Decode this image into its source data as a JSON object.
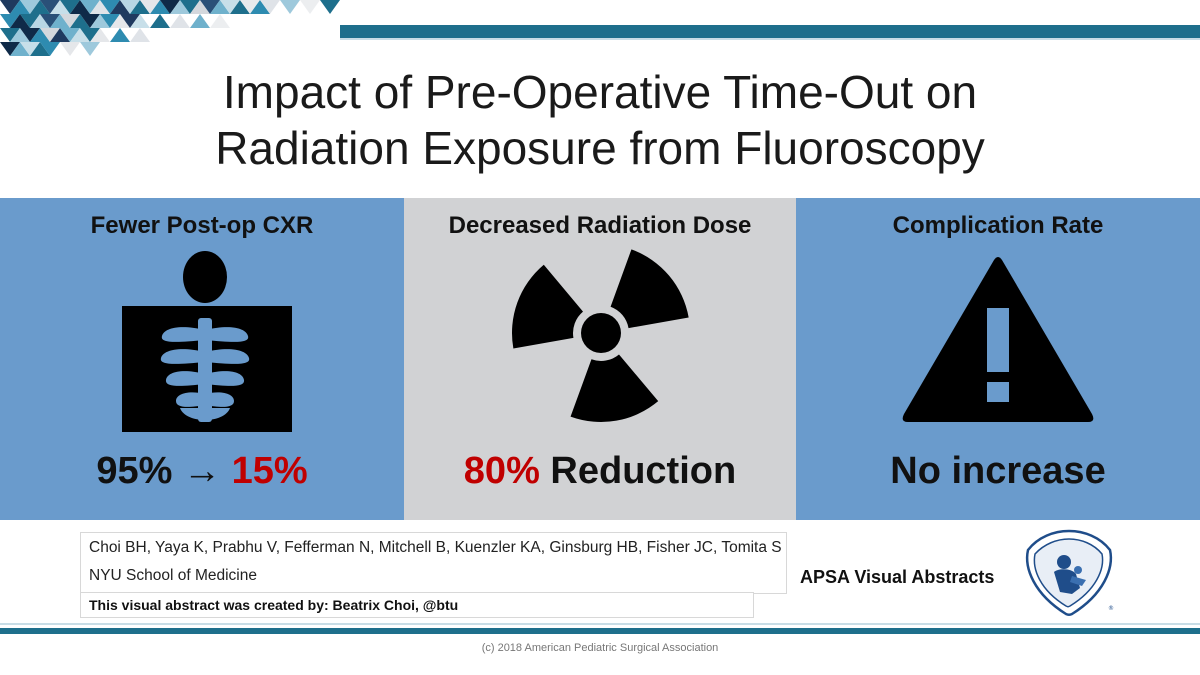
{
  "title": {
    "line1": "Impact of Pre-Operative Time-Out on",
    "line2": "Radiation Exposure from Fluoroscopy"
  },
  "panels": [
    {
      "heading": "Fewer Post-op CXR",
      "icon": "chest-xray-icon",
      "stat_before": "95%",
      "stat_arrow": "→",
      "stat_after": "15%"
    },
    {
      "heading": "Decreased Radiation Dose",
      "icon": "radiation-icon",
      "stat_highlight": "80%",
      "stat_text": "Reduction"
    },
    {
      "heading": "Complication Rate",
      "icon": "warning-icon",
      "stat_text": "No increase"
    }
  ],
  "authors": "Choi BH, Yaya K, Prabhu V, Fefferman N, Mitchell B, Kuenzler KA, Ginsburg HB, Fisher JC, Tomita S",
  "institution": "NYU School of Medicine",
  "credit": "This visual abstract was created by: Beatrix Choi, @btu",
  "apsa_label": "APSA Visual Abstracts",
  "copyright": "(c) 2018 American Pediatric Surgical Association",
  "colors": {
    "panel_blue": "#6a9bcc",
    "panel_gray": "#d1d2d4",
    "accent_red": "#c00000",
    "bar_teal": "#1e6f8c"
  }
}
